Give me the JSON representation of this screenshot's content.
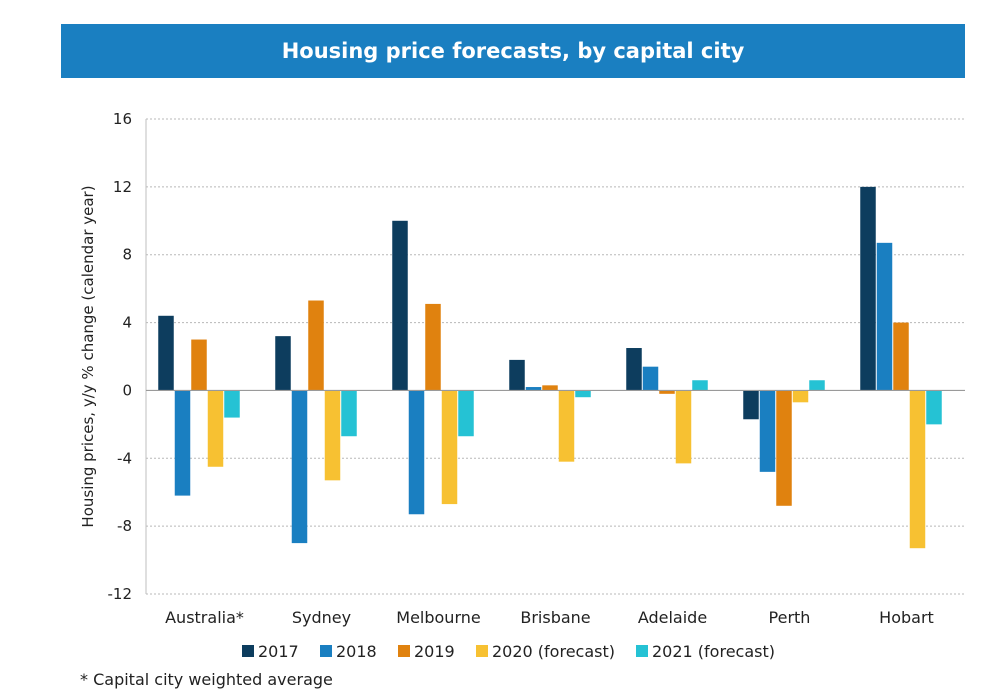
{
  "chart_data": {
    "type": "bar",
    "title": "Housing price forecasts, by capital city",
    "xlabel": "",
    "ylabel": "Housing prices, y/y % change (calendar year)",
    "ylim": [
      -12,
      16
    ],
    "yticks": [
      -12,
      -8,
      -4,
      0,
      4,
      8,
      12,
      16
    ],
    "grid": true,
    "legend_position": "bottom",
    "categories": [
      "Australia*",
      "Sydney",
      "Melbourne",
      "Brisbane",
      "Adelaide",
      "Perth",
      "Hobart"
    ],
    "series": [
      {
        "name": "2017",
        "color": "#0d3d5e",
        "values": [
          4.4,
          3.2,
          10.0,
          1.8,
          2.5,
          -1.7,
          12.0
        ]
      },
      {
        "name": "2018",
        "color": "#1a7fc1",
        "values": [
          -6.2,
          -9.0,
          -7.3,
          0.2,
          1.4,
          -4.8,
          8.7
        ]
      },
      {
        "name": "2019",
        "color": "#e0820f",
        "values": [
          3.0,
          5.3,
          5.1,
          0.3,
          -0.2,
          -6.8,
          4.0
        ]
      },
      {
        "name": "2020 (forecast)",
        "color": "#f7c132",
        "values": [
          -4.5,
          -5.3,
          -6.7,
          -4.2,
          -4.3,
          -0.7,
          -9.3
        ]
      },
      {
        "name": "2021 (forecast)",
        "color": "#25c2d4",
        "values": [
          -1.6,
          -2.7,
          -2.7,
          -0.4,
          0.6,
          0.6,
          -2.0
        ]
      }
    ],
    "footnote": "* Capital city weighted average"
  }
}
